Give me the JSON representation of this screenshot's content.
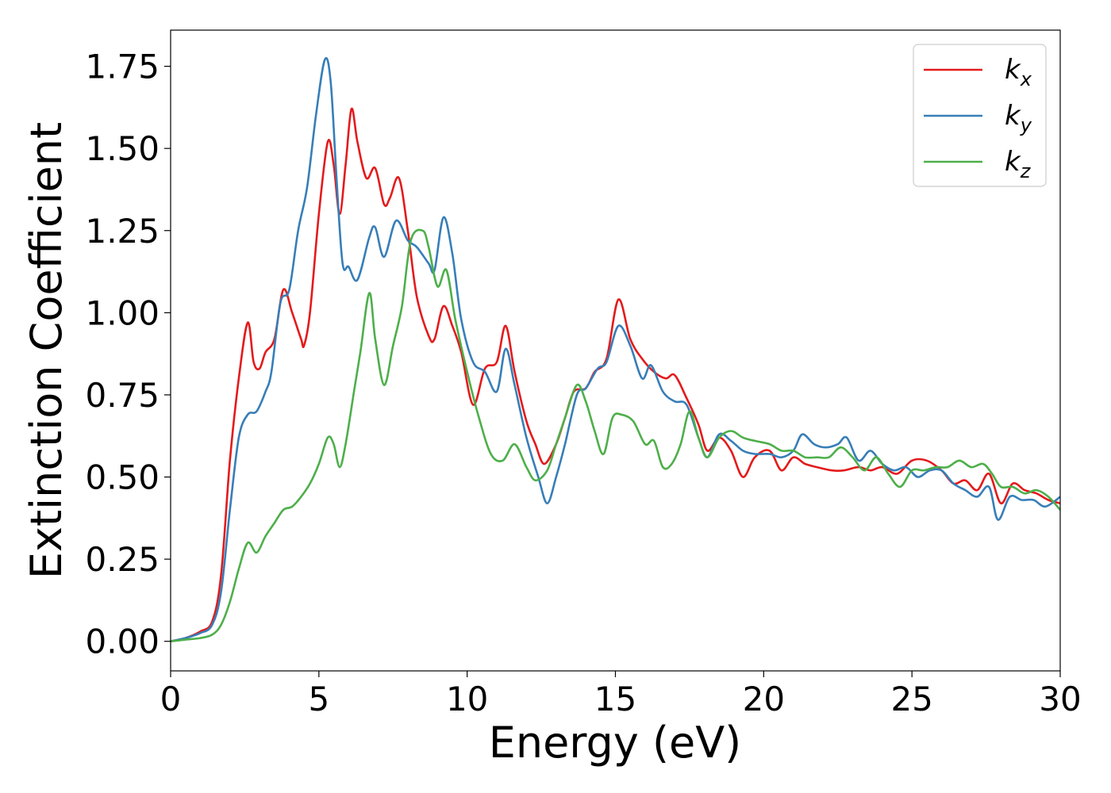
{
  "chart_data": {
    "type": "line",
    "xlabel": "Energy (eV)",
    "ylabel": "Extinction Coefficient",
    "xlim": [
      0,
      30
    ],
    "ylim": [
      -0.09,
      1.86
    ],
    "xticks": [
      0,
      5,
      10,
      15,
      20,
      25,
      30
    ],
    "yticks": [
      0.0,
      0.25,
      0.5,
      0.75,
      1.0,
      1.25,
      1.5,
      1.75
    ],
    "xtick_labels": [
      "0",
      "5",
      "10",
      "15",
      "20",
      "25",
      "30"
    ],
    "ytick_labels": [
      "0.00",
      "0.25",
      "0.50",
      "0.75",
      "1.00",
      "1.25",
      "1.50",
      "1.75"
    ],
    "grid": false,
    "legend_position": "top-right",
    "series": [
      {
        "name": "k",
        "subscript": "x",
        "color": "#e41a1c",
        "points": [
          [
            0,
            0
          ],
          [
            0.5,
            0.01
          ],
          [
            1.0,
            0.03
          ],
          [
            1.4,
            0.06
          ],
          [
            1.7,
            0.2
          ],
          [
            2.0,
            0.55
          ],
          [
            2.3,
            0.8
          ],
          [
            2.6,
            0.97
          ],
          [
            2.8,
            0.85
          ],
          [
            3.0,
            0.83
          ],
          [
            3.2,
            0.88
          ],
          [
            3.5,
            0.92
          ],
          [
            3.8,
            1.07
          ],
          [
            4.1,
            1.0
          ],
          [
            4.4,
            0.92
          ],
          [
            4.5,
            0.9
          ],
          [
            4.7,
            1.0
          ],
          [
            5.0,
            1.3
          ],
          [
            5.3,
            1.52
          ],
          [
            5.5,
            1.45
          ],
          [
            5.7,
            1.3
          ],
          [
            5.9,
            1.45
          ],
          [
            6.1,
            1.62
          ],
          [
            6.3,
            1.52
          ],
          [
            6.6,
            1.41
          ],
          [
            6.9,
            1.44
          ],
          [
            7.2,
            1.33
          ],
          [
            7.4,
            1.35
          ],
          [
            7.7,
            1.41
          ],
          [
            8.0,
            1.25
          ],
          [
            8.3,
            1.05
          ],
          [
            8.7,
            0.93
          ],
          [
            8.9,
            0.92
          ],
          [
            9.2,
            1.02
          ],
          [
            9.5,
            0.96
          ],
          [
            9.8,
            0.88
          ],
          [
            10.2,
            0.72
          ],
          [
            10.6,
            0.83
          ],
          [
            11.0,
            0.85
          ],
          [
            11.3,
            0.96
          ],
          [
            11.6,
            0.82
          ],
          [
            12.0,
            0.67
          ],
          [
            12.3,
            0.6
          ],
          [
            12.6,
            0.54
          ],
          [
            13.0,
            0.6
          ],
          [
            13.3,
            0.68
          ],
          [
            13.6,
            0.76
          ],
          [
            14.0,
            0.77
          ],
          [
            14.3,
            0.82
          ],
          [
            14.7,
            0.86
          ],
          [
            15.1,
            1.04
          ],
          [
            15.5,
            0.92
          ],
          [
            15.9,
            0.86
          ],
          [
            16.3,
            0.82
          ],
          [
            16.7,
            0.8
          ],
          [
            17.0,
            0.81
          ],
          [
            17.4,
            0.74
          ],
          [
            17.8,
            0.66
          ],
          [
            18.1,
            0.58
          ],
          [
            18.5,
            0.62
          ],
          [
            18.9,
            0.58
          ],
          [
            19.3,
            0.5
          ],
          [
            19.7,
            0.56
          ],
          [
            20.2,
            0.58
          ],
          [
            20.6,
            0.52
          ],
          [
            21.0,
            0.56
          ],
          [
            21.4,
            0.54
          ],
          [
            21.8,
            0.53
          ],
          [
            22.3,
            0.52
          ],
          [
            22.7,
            0.52
          ],
          [
            23.2,
            0.53
          ],
          [
            23.6,
            0.52
          ],
          [
            24.0,
            0.53
          ],
          [
            24.5,
            0.51
          ],
          [
            25.0,
            0.55
          ],
          [
            25.5,
            0.55
          ],
          [
            26.0,
            0.52
          ],
          [
            26.4,
            0.48
          ],
          [
            26.8,
            0.49
          ],
          [
            27.2,
            0.46
          ],
          [
            27.6,
            0.51
          ],
          [
            28.0,
            0.42
          ],
          [
            28.4,
            0.48
          ],
          [
            28.8,
            0.46
          ],
          [
            29.2,
            0.45
          ],
          [
            29.6,
            0.43
          ],
          [
            30.0,
            0.42
          ]
        ]
      },
      {
        "name": "k",
        "subscript": "y",
        "color": "#377eb8",
        "points": [
          [
            0,
            0
          ],
          [
            0.5,
            0.01
          ],
          [
            1.0,
            0.025
          ],
          [
            1.4,
            0.05
          ],
          [
            1.7,
            0.15
          ],
          [
            2.0,
            0.4
          ],
          [
            2.3,
            0.62
          ],
          [
            2.6,
            0.69
          ],
          [
            2.9,
            0.7
          ],
          [
            3.2,
            0.76
          ],
          [
            3.4,
            0.82
          ],
          [
            3.7,
            1.03
          ],
          [
            4.0,
            1.07
          ],
          [
            4.3,
            1.25
          ],
          [
            4.6,
            1.38
          ],
          [
            4.9,
            1.6
          ],
          [
            5.2,
            1.77
          ],
          [
            5.4,
            1.7
          ],
          [
            5.6,
            1.4
          ],
          [
            5.8,
            1.15
          ],
          [
            6.0,
            1.14
          ],
          [
            6.3,
            1.1
          ],
          [
            6.7,
            1.23
          ],
          [
            6.9,
            1.26
          ],
          [
            7.2,
            1.17
          ],
          [
            7.6,
            1.28
          ],
          [
            8.0,
            1.22
          ],
          [
            8.3,
            1.2
          ],
          [
            8.7,
            1.15
          ],
          [
            8.9,
            1.13
          ],
          [
            9.2,
            1.29
          ],
          [
            9.5,
            1.18
          ],
          [
            9.8,
            0.98
          ],
          [
            10.2,
            0.85
          ],
          [
            10.6,
            0.82
          ],
          [
            11.0,
            0.76
          ],
          [
            11.3,
            0.89
          ],
          [
            11.6,
            0.78
          ],
          [
            12.0,
            0.62
          ],
          [
            12.4,
            0.5
          ],
          [
            12.7,
            0.42
          ],
          [
            13.0,
            0.5
          ],
          [
            13.3,
            0.6
          ],
          [
            13.7,
            0.75
          ],
          [
            14.0,
            0.77
          ],
          [
            14.4,
            0.83
          ],
          [
            14.7,
            0.85
          ],
          [
            15.1,
            0.96
          ],
          [
            15.5,
            0.9
          ],
          [
            15.9,
            0.8
          ],
          [
            16.2,
            0.84
          ],
          [
            16.6,
            0.76
          ],
          [
            17.0,
            0.73
          ],
          [
            17.4,
            0.72
          ],
          [
            17.8,
            0.62
          ],
          [
            18.1,
            0.56
          ],
          [
            18.5,
            0.63
          ],
          [
            18.9,
            0.61
          ],
          [
            19.3,
            0.58
          ],
          [
            19.7,
            0.57
          ],
          [
            20.2,
            0.57
          ],
          [
            20.6,
            0.56
          ],
          [
            21.0,
            0.58
          ],
          [
            21.3,
            0.63
          ],
          [
            21.7,
            0.6
          ],
          [
            22.1,
            0.59
          ],
          [
            22.5,
            0.6
          ],
          [
            22.8,
            0.62
          ],
          [
            23.2,
            0.55
          ],
          [
            23.6,
            0.58
          ],
          [
            24.0,
            0.54
          ],
          [
            24.4,
            0.52
          ],
          [
            24.8,
            0.53
          ],
          [
            25.2,
            0.5
          ],
          [
            25.6,
            0.52
          ],
          [
            26.0,
            0.52
          ],
          [
            26.4,
            0.48
          ],
          [
            26.8,
            0.46
          ],
          [
            27.2,
            0.44
          ],
          [
            27.6,
            0.47
          ],
          [
            27.9,
            0.37
          ],
          [
            28.3,
            0.44
          ],
          [
            28.7,
            0.43
          ],
          [
            29.1,
            0.43
          ],
          [
            29.5,
            0.41
          ],
          [
            30.0,
            0.44
          ]
        ]
      },
      {
        "name": "k",
        "subscript": "z",
        "color": "#4daf4a",
        "points": [
          [
            0,
            0
          ],
          [
            0.5,
            0.005
          ],
          [
            1.0,
            0.01
          ],
          [
            1.4,
            0.02
          ],
          [
            1.7,
            0.05
          ],
          [
            2.0,
            0.12
          ],
          [
            2.3,
            0.22
          ],
          [
            2.6,
            0.3
          ],
          [
            2.9,
            0.27
          ],
          [
            3.2,
            0.32
          ],
          [
            3.5,
            0.36
          ],
          [
            3.8,
            0.4
          ],
          [
            4.1,
            0.41
          ],
          [
            4.4,
            0.44
          ],
          [
            4.7,
            0.48
          ],
          [
            5.0,
            0.54
          ],
          [
            5.3,
            0.62
          ],
          [
            5.5,
            0.6
          ],
          [
            5.7,
            0.53
          ],
          [
            5.9,
            0.6
          ],
          [
            6.2,
            0.77
          ],
          [
            6.4,
            0.88
          ],
          [
            6.7,
            1.06
          ],
          [
            6.9,
            0.92
          ],
          [
            7.2,
            0.78
          ],
          [
            7.5,
            0.9
          ],
          [
            7.8,
            1.02
          ],
          [
            8.1,
            1.22
          ],
          [
            8.5,
            1.25
          ],
          [
            8.7,
            1.2
          ],
          [
            9.0,
            1.08
          ],
          [
            9.3,
            1.13
          ],
          [
            9.6,
            0.98
          ],
          [
            10.0,
            0.82
          ],
          [
            10.4,
            0.68
          ],
          [
            10.8,
            0.57
          ],
          [
            11.2,
            0.55
          ],
          [
            11.6,
            0.6
          ],
          [
            12.0,
            0.53
          ],
          [
            12.3,
            0.49
          ],
          [
            12.7,
            0.52
          ],
          [
            13.0,
            0.6
          ],
          [
            13.3,
            0.68
          ],
          [
            13.7,
            0.78
          ],
          [
            14.0,
            0.73
          ],
          [
            14.3,
            0.64
          ],
          [
            14.6,
            0.57
          ],
          [
            14.9,
            0.68
          ],
          [
            15.2,
            0.69
          ],
          [
            15.6,
            0.67
          ],
          [
            16.0,
            0.6
          ],
          [
            16.3,
            0.61
          ],
          [
            16.6,
            0.53
          ],
          [
            16.9,
            0.54
          ],
          [
            17.2,
            0.6
          ],
          [
            17.5,
            0.7
          ],
          [
            17.8,
            0.62
          ],
          [
            18.1,
            0.56
          ],
          [
            18.5,
            0.62
          ],
          [
            18.9,
            0.64
          ],
          [
            19.3,
            0.62
          ],
          [
            19.7,
            0.61
          ],
          [
            20.2,
            0.6
          ],
          [
            20.6,
            0.58
          ],
          [
            21.0,
            0.58
          ],
          [
            21.4,
            0.56
          ],
          [
            21.8,
            0.56
          ],
          [
            22.2,
            0.56
          ],
          [
            22.6,
            0.59
          ],
          [
            23.0,
            0.56
          ],
          [
            23.4,
            0.52
          ],
          [
            23.8,
            0.56
          ],
          [
            24.2,
            0.51
          ],
          [
            24.6,
            0.47
          ],
          [
            25.0,
            0.52
          ],
          [
            25.4,
            0.52
          ],
          [
            25.8,
            0.53
          ],
          [
            26.2,
            0.53
          ],
          [
            26.6,
            0.55
          ],
          [
            27.0,
            0.53
          ],
          [
            27.4,
            0.54
          ],
          [
            27.7,
            0.51
          ],
          [
            28.0,
            0.47
          ],
          [
            28.4,
            0.47
          ],
          [
            28.8,
            0.45
          ],
          [
            29.2,
            0.46
          ],
          [
            29.6,
            0.44
          ],
          [
            30.0,
            0.4
          ]
        ]
      }
    ]
  }
}
